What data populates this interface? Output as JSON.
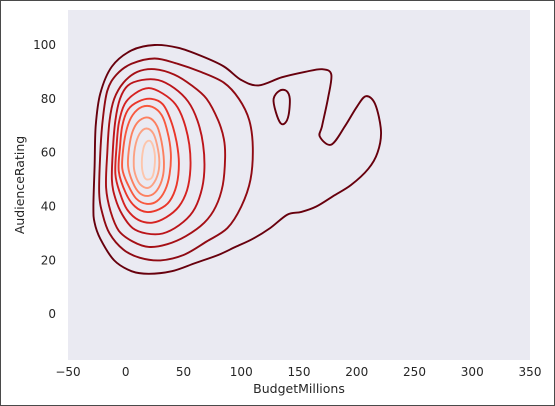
{
  "chart_data": {
    "type": "kde_contour",
    "title": "",
    "xlabel": "BudgetMillions",
    "ylabel": "AudienceRating",
    "xlim": [
      -50,
      350
    ],
    "ylim": [
      -17,
      113
    ],
    "xticks": [
      -50,
      0,
      50,
      100,
      150,
      200,
      250,
      300,
      350
    ],
    "yticks": [
      0,
      20,
      40,
      60,
      80,
      100
    ],
    "grid": false,
    "background": "#eaeaf2",
    "colormap": "Reds",
    "levels": [
      {
        "level": 1,
        "color": "#67000d",
        "polygons": [
          [
            [
              -28,
              40
            ],
            [
              -27,
              55
            ],
            [
              -26,
              70
            ],
            [
              -22,
              82
            ],
            [
              -12,
              92
            ],
            [
              5,
              98
            ],
            [
              25,
              100
            ],
            [
              45,
              99
            ],
            [
              65,
              96
            ],
            [
              85,
              92
            ],
            [
              100,
              87
            ],
            [
              115,
              85
            ],
            [
              135,
              88
            ],
            [
              155,
              90
            ],
            [
              170,
              91
            ],
            [
              178,
              89
            ],
            [
              175,
              80
            ],
            [
              170,
              70
            ],
            [
              168,
              66
            ],
            [
              178,
              63
            ],
            [
              190,
              70
            ],
            [
              200,
              77
            ],
            [
              208,
              81
            ],
            [
              216,
              78
            ],
            [
              221,
              68
            ],
            [
              218,
              60
            ],
            [
              210,
              54
            ],
            [
              195,
              48
            ],
            [
              180,
              44
            ],
            [
              165,
              40
            ],
            [
              152,
              38
            ],
            [
              140,
              37
            ],
            [
              125,
              32
            ],
            [
              110,
              28
            ],
            [
              95,
              25
            ],
            [
              80,
              22
            ],
            [
              60,
              19
            ],
            [
              40,
              16
            ],
            [
              20,
              15
            ],
            [
              5,
              16
            ],
            [
              -10,
              20
            ],
            [
              -22,
              28
            ],
            [
              -27,
              34
            ]
          ],
          [
            [
              128,
              80
            ],
            [
              133,
              83
            ],
            [
              139,
              83
            ],
            [
              142,
              80
            ],
            [
              141,
              74
            ],
            [
              138,
              71
            ],
            [
              134,
              71
            ],
            [
              130,
              75
            ]
          ]
        ]
      },
      {
        "level": 2,
        "color": "#8f0a13",
        "polygons": [
          [
            [
              -23,
              45
            ],
            [
              -22,
              60
            ],
            [
              -20,
              72
            ],
            [
              -16,
              83
            ],
            [
              -8,
              89
            ],
            [
              5,
              93
            ],
            [
              25,
              95
            ],
            [
              45,
              93
            ],
            [
              65,
              90
            ],
            [
              85,
              86
            ],
            [
              98,
              80
            ],
            [
              107,
              72
            ],
            [
              110,
              62
            ],
            [
              108,
              50
            ],
            [
              100,
              40
            ],
            [
              88,
              32
            ],
            [
              70,
              27
            ],
            [
              50,
              22
            ],
            [
              30,
              20
            ],
            [
              12,
              21
            ],
            [
              -2,
              24
            ],
            [
              -14,
              30
            ],
            [
              -20,
              37
            ]
          ]
        ]
      },
      {
        "level": 3,
        "color": "#a50f15",
        "polygons": [
          [
            [
              -17,
              47
            ],
            [
              -16,
              60
            ],
            [
              -14,
              72
            ],
            [
              -10,
              80
            ],
            [
              -2,
              86
            ],
            [
              10,
              90
            ],
            [
              25,
              91
            ],
            [
              42,
              89
            ],
            [
              57,
              85
            ],
            [
              70,
              80
            ],
            [
              80,
              72
            ],
            [
              85,
              65
            ],
            [
              86,
              58
            ],
            [
              84,
              48
            ],
            [
              78,
              40
            ],
            [
              68,
              34
            ],
            [
              52,
              29
            ],
            [
              36,
              26
            ],
            [
              20,
              25
            ],
            [
              6,
              27
            ],
            [
              -6,
              31
            ],
            [
              -13,
              38
            ]
          ]
        ]
      },
      {
        "level": 4,
        "color": "#bb141a",
        "polygons": [
          [
            [
              -12,
              50
            ],
            [
              -11,
              62
            ],
            [
              -9,
              72
            ],
            [
              -5,
              80
            ],
            [
              2,
              85
            ],
            [
              14,
              87
            ],
            [
              28,
              87
            ],
            [
              42,
              84
            ],
            [
              54,
              79
            ],
            [
              62,
              72
            ],
            [
              67,
              63
            ],
            [
              68,
              53
            ],
            [
              65,
              45
            ],
            [
              58,
              38
            ],
            [
              46,
              33
            ],
            [
              32,
              30
            ],
            [
              18,
              30
            ],
            [
              6,
              32
            ],
            [
              -3,
              37
            ],
            [
              -9,
              43
            ]
          ]
        ]
      },
      {
        "level": 5,
        "color": "#d52221",
        "polygons": [
          [
            [
              -9,
              52
            ],
            [
              -8,
              62
            ],
            [
              -6,
              71
            ],
            [
              -1,
              78
            ],
            [
              8,
              82
            ],
            [
              20,
              84
            ],
            [
              32,
              82
            ],
            [
              43,
              78
            ],
            [
              50,
              72
            ],
            [
              55,
              63
            ],
            [
              56,
              54
            ],
            [
              53,
              46
            ],
            [
              46,
              40
            ],
            [
              35,
              36
            ],
            [
              23,
              34
            ],
            [
              11,
              35
            ],
            [
              1,
              39
            ],
            [
              -5,
              45
            ]
          ]
        ]
      },
      {
        "level": 6,
        "color": "#ea362a",
        "polygons": [
          [
            [
              -6,
              53
            ],
            [
              -5,
              62
            ],
            [
              -3,
              70
            ],
            [
              2,
              76
            ],
            [
              11,
              79
            ],
            [
              22,
              80
            ],
            [
              32,
              78
            ],
            [
              39,
              72
            ],
            [
              44,
              64
            ],
            [
              46,
              56
            ],
            [
              44,
              48
            ],
            [
              38,
              42
            ],
            [
              29,
              39
            ],
            [
              18,
              38
            ],
            [
              8,
              40
            ],
            [
              0,
              45
            ]
          ]
        ]
      },
      {
        "level": 7,
        "color": "#f8593f",
        "polygons": [
          [
            [
              -3,
              54
            ],
            [
              -2,
              62
            ],
            [
              1,
              69
            ],
            [
              6,
              74
            ],
            [
              14,
              77
            ],
            [
              23,
              77
            ],
            [
              31,
              74
            ],
            [
              36,
              68
            ],
            [
              39,
              60
            ],
            [
              38,
              52
            ],
            [
              34,
              46
            ],
            [
              27,
              42
            ],
            [
              18,
              41
            ],
            [
              9,
              43
            ],
            [
              2,
              48
            ]
          ]
        ]
      },
      {
        "level": 8,
        "color": "#fc7f5f",
        "polygons": [
          [
            [
              2,
              55
            ],
            [
              3,
              62
            ],
            [
              6,
              68
            ],
            [
              12,
              72
            ],
            [
              20,
              73
            ],
            [
              27,
              70
            ],
            [
              31,
              64
            ],
            [
              33,
              57
            ],
            [
              32,
              51
            ],
            [
              27,
              46
            ],
            [
              20,
              44
            ],
            [
              12,
              45
            ],
            [
              6,
              49
            ]
          ]
        ]
      },
      {
        "level": 9,
        "color": "#fca183",
        "polygons": [
          [
            [
              7,
              55
            ],
            [
              8,
              62
            ],
            [
              12,
              67
            ],
            [
              18,
              69
            ],
            [
              24,
              67
            ],
            [
              28,
              61
            ],
            [
              29,
              55
            ],
            [
              26,
              50
            ],
            [
              20,
              47
            ],
            [
              13,
              48
            ],
            [
              9,
              51
            ]
          ]
        ]
      },
      {
        "level": 10,
        "color": "#fdc5ab",
        "polygons": [
          [
            [
              14,
              55
            ],
            [
              15,
              61
            ],
            [
              18,
              64
            ],
            [
              22,
              64
            ],
            [
              25,
              60
            ],
            [
              25,
              55
            ],
            [
              23,
              51
            ],
            [
              19,
              50
            ],
            [
              16,
              51
            ]
          ]
        ]
      }
    ]
  }
}
